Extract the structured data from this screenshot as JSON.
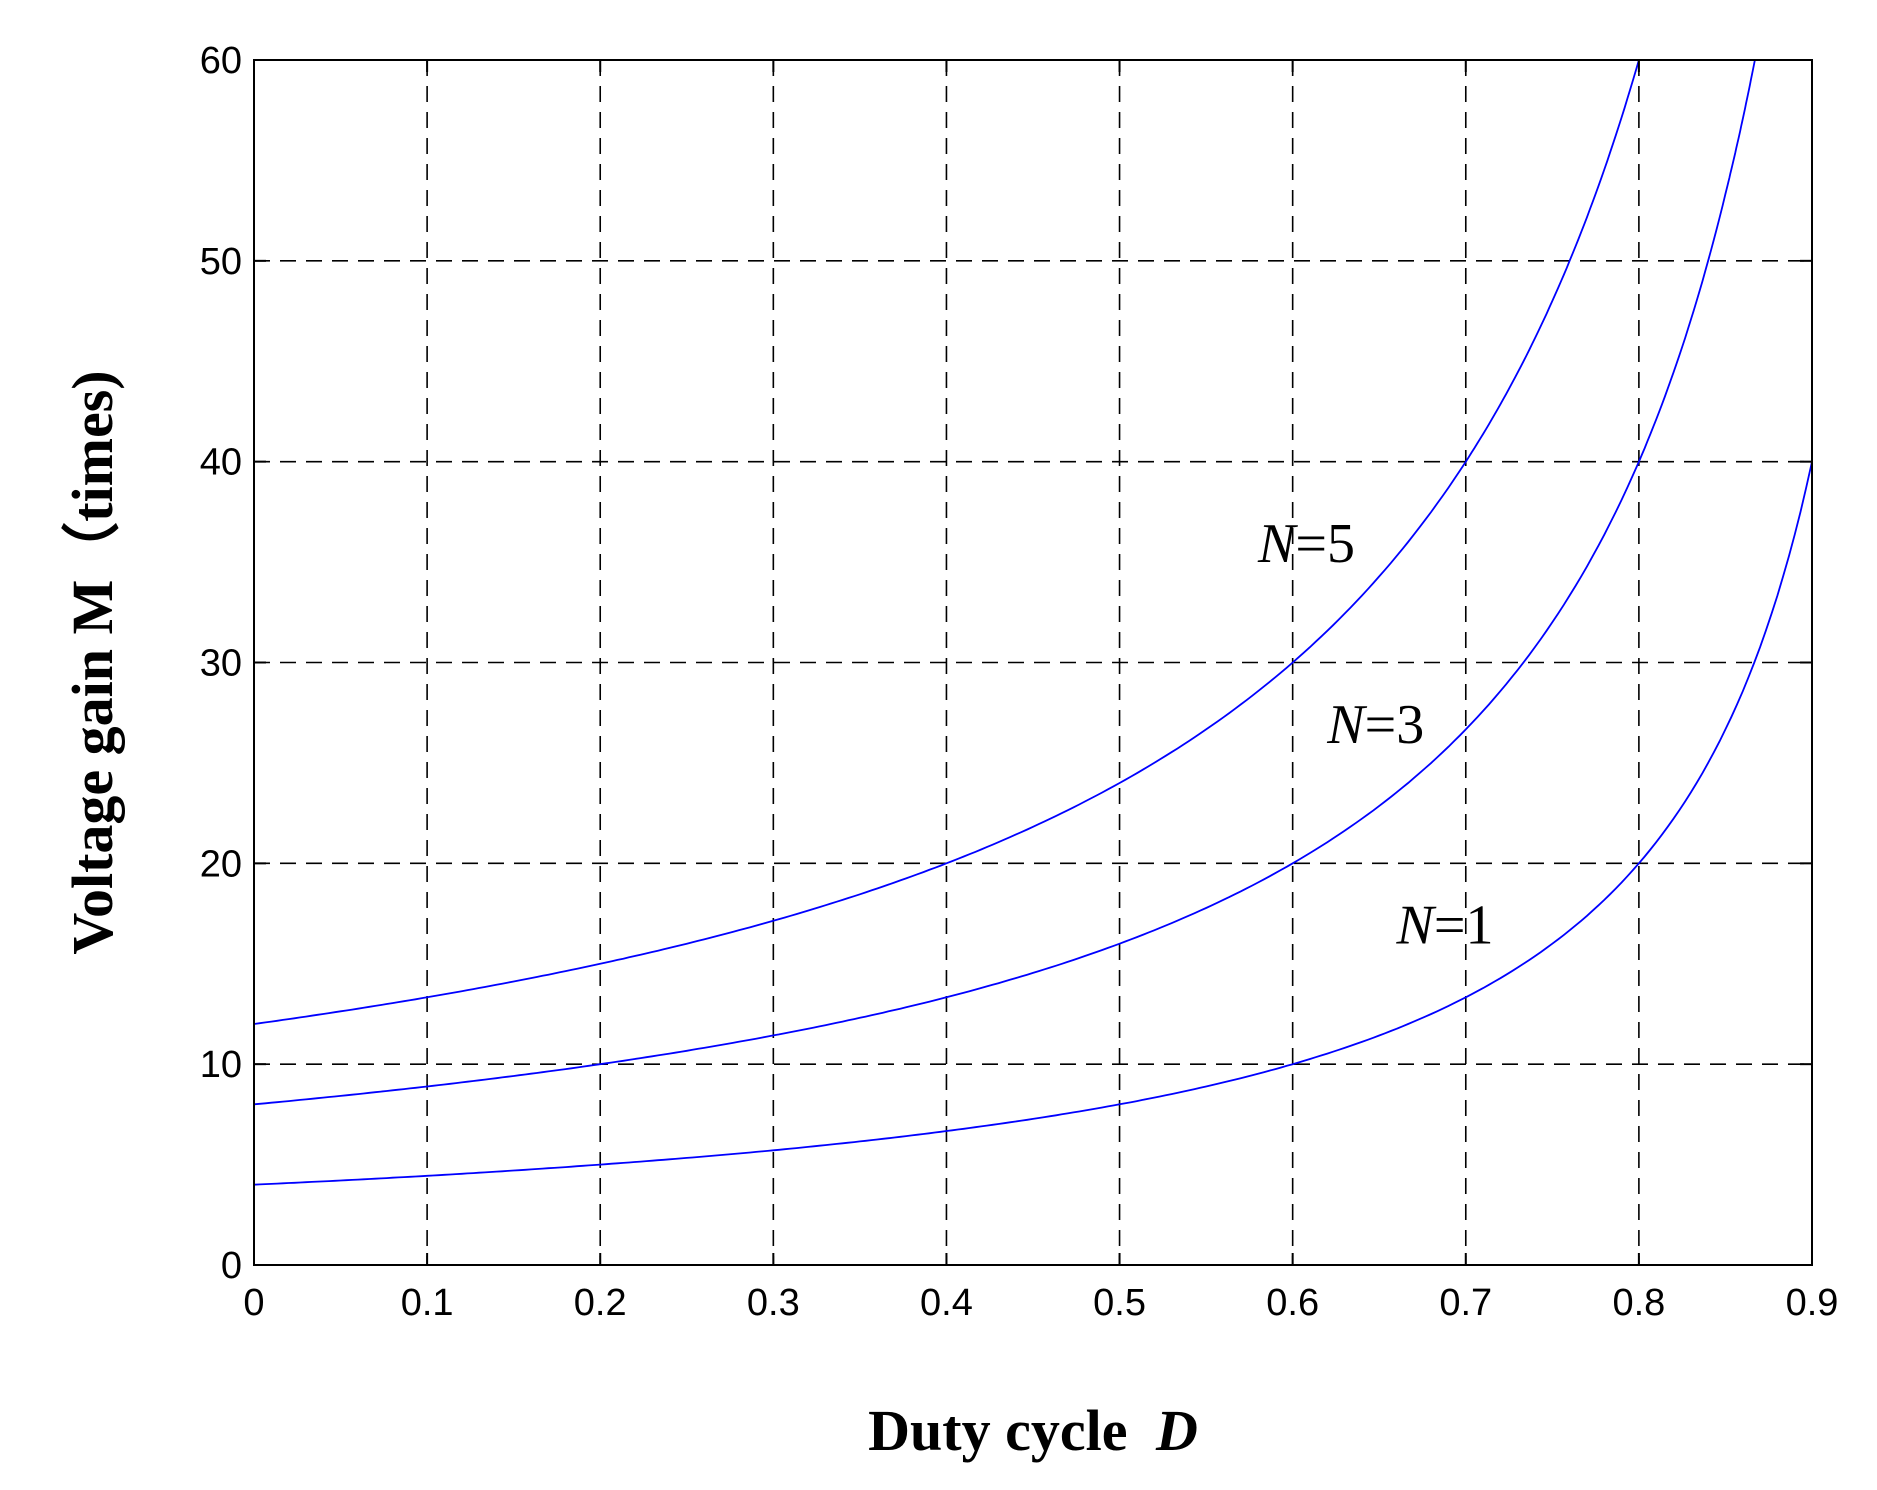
{
  "chart_data": {
    "type": "line",
    "xlabel": "Duty cycle",
    "xlabel_var": "D",
    "ylabel": "Voltage gain M（times)",
    "xlim": [
      0,
      0.9
    ],
    "ylim": [
      0,
      60
    ],
    "xticks": [
      "0",
      "0.1",
      "0.2",
      "0.3",
      "0.4",
      "0.5",
      "0.6",
      "0.7",
      "0.8",
      "0.9"
    ],
    "yticks": [
      "0",
      "10",
      "20",
      "30",
      "40",
      "50",
      "60"
    ],
    "grid": true,
    "legend": "none",
    "series": [
      {
        "name": "N=1",
        "color": "#0000ff",
        "x": [
          0,
          0.1,
          0.2,
          0.3,
          0.4,
          0.5,
          0.6,
          0.7,
          0.8,
          0.9
        ],
        "y": [
          4,
          4.44,
          5,
          5.71,
          6.67,
          8,
          10,
          13.33,
          20,
          40
        ]
      },
      {
        "name": "N=3",
        "color": "#0000ff",
        "x": [
          0,
          0.1,
          0.2,
          0.3,
          0.4,
          0.5,
          0.6,
          0.7,
          0.8,
          0.85,
          0.867
        ],
        "y": [
          8,
          8.89,
          10,
          11.43,
          13.33,
          16,
          20,
          26.67,
          40,
          53.33,
          60
        ]
      },
      {
        "name": "N=5",
        "color": "#0000ff",
        "x": [
          0,
          0.1,
          0.2,
          0.3,
          0.4,
          0.5,
          0.6,
          0.7,
          0.75,
          0.8
        ],
        "y": [
          12,
          13.33,
          15,
          17.14,
          20,
          24,
          30,
          40,
          48,
          60
        ]
      }
    ],
    "annotations": [
      {
        "prefix": "N",
        "text": "=5",
        "x": 0.58,
        "y": 35
      },
      {
        "prefix": "N",
        "text": "=3",
        "x": 0.62,
        "y": 26
      },
      {
        "prefix": "N",
        "text": "=1",
        "x": 0.66,
        "y": 16
      }
    ]
  }
}
